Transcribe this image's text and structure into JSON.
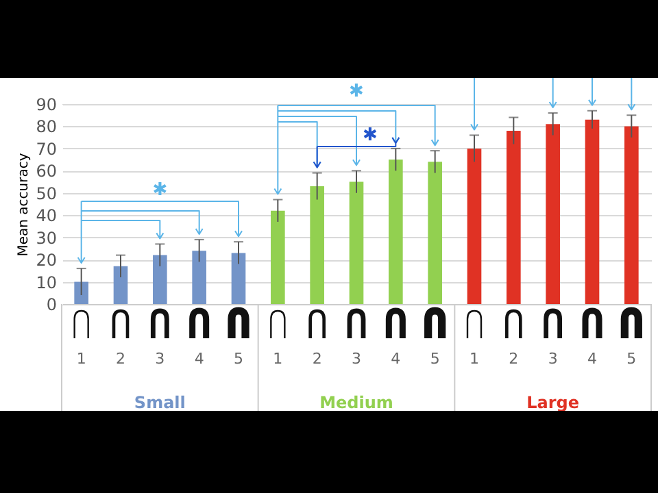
{
  "chart_data": {
    "type": "bar",
    "ylabel": "Mean accuracy",
    "categories": [
      "1",
      "2",
      "3",
      "4",
      "5",
      "1",
      "2",
      "3",
      "4",
      "5",
      "1",
      "2",
      "3",
      "4",
      "5"
    ],
    "series": [
      {
        "name": "Small",
        "color": "#7394c8",
        "values": [
          10,
          17,
          22,
          24,
          23,
          null,
          null,
          null,
          null,
          null,
          null,
          null,
          null,
          null,
          null
        ],
        "errors": [
          6,
          5,
          5,
          5,
          5,
          null,
          null,
          null,
          null,
          null,
          null,
          null,
          null,
          null,
          null
        ]
      },
      {
        "name": "Medium",
        "color": "#92d050",
        "values": [
          null,
          null,
          null,
          null,
          null,
          42,
          53,
          55,
          65,
          64,
          null,
          null,
          null,
          null,
          null
        ],
        "errors": [
          null,
          null,
          null,
          null,
          null,
          5,
          6,
          5,
          5,
          5,
          null,
          null,
          null,
          null,
          null
        ]
      },
      {
        "name": "Large",
        "color": "#e03224",
        "values": [
          null,
          null,
          null,
          null,
          null,
          null,
          null,
          null,
          null,
          null,
          70,
          78,
          81,
          83,
          80
        ],
        "errors": [
          null,
          null,
          null,
          null,
          null,
          null,
          null,
          null,
          null,
          null,
          6,
          6,
          5,
          4,
          5
        ]
      }
    ],
    "annotations": [
      "✱",
      "✱",
      "✱"
    ],
    "ylim": [
      0,
      90
    ],
    "yticks": [
      0,
      10,
      20,
      30,
      40,
      50,
      60,
      70,
      80,
      90
    ],
    "grid": "y"
  }
}
